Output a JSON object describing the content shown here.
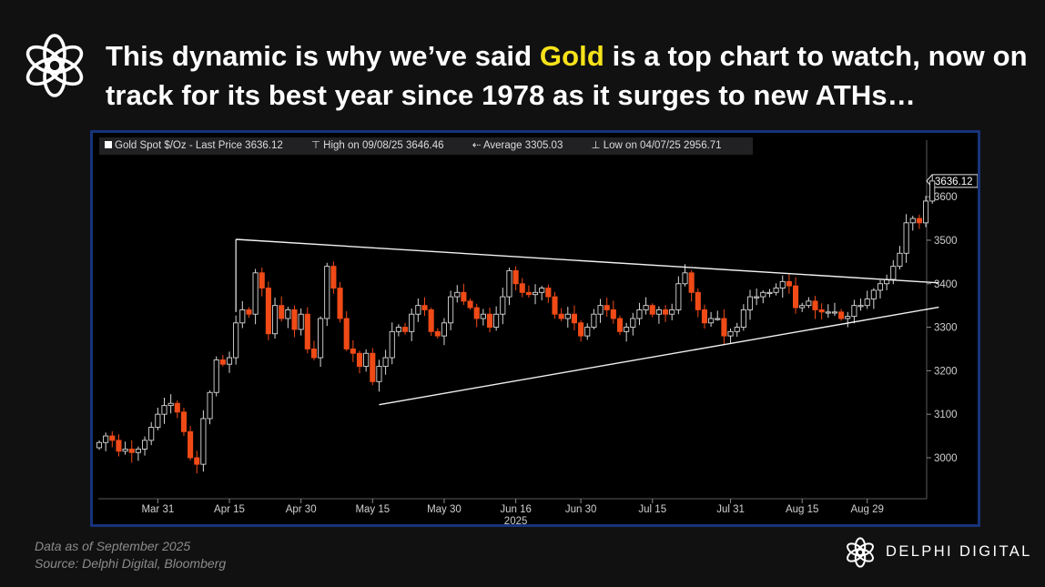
{
  "headline": {
    "part1": "This dynamic is why we’ve said ",
    "highlight": "Gold",
    "part2": " is a top chart to watch, now on track for its best year since 1978 as it surges to new ATHs…"
  },
  "legend": {
    "series": "Gold Spot $/Oz - Last Price 3636.12",
    "high": "High on 09/08/25 3646.46",
    "average": "Average 3305.03",
    "low": "Low on 04/07/25 2956.71"
  },
  "footer": {
    "line1": "Data as of September  2025",
    "line2": "Source:  Delphi Digital, Bloomberg"
  },
  "brand": {
    "name": "DELPHI DIGITAL",
    "logo_icon": "knot-icon"
  },
  "colors": {
    "up": "#000000",
    "up_outline": "#d8d8d8",
    "down": "#f04a17",
    "accent": "#f7e21a",
    "frame": "#17337a"
  },
  "chart_data": {
    "type": "candlestick",
    "title": "Gold Spot $/Oz",
    "last_price_label": "3636.12",
    "year_label": "2025",
    "ylim": [
      2910,
      3730
    ],
    "yticks": [
      3000,
      3100,
      3200,
      3300,
      3400,
      3500,
      3600
    ],
    "xticks": [
      {
        "label": "Mar 31",
        "index": 9
      },
      {
        "label": "Apr 15",
        "index": 20
      },
      {
        "label": "Apr 30",
        "index": 31
      },
      {
        "label": "May 15",
        "index": 42
      },
      {
        "label": "May 30",
        "index": 53
      },
      {
        "label": "Jun 16",
        "index": 64
      },
      {
        "label": "Jun 30",
        "index": 74
      },
      {
        "label": "Jul 15",
        "index": 85
      },
      {
        "label": "Jul 31",
        "index": 97
      },
      {
        "label": "Aug 15",
        "index": 108
      },
      {
        "label": "Aug 29",
        "index": 118
      }
    ],
    "closes": [
      3035,
      3050,
      3040,
      3015,
      3020,
      3012,
      3020,
      3040,
      3070,
      3100,
      3120,
      3125,
      3105,
      3060,
      3000,
      2985,
      3090,
      3150,
      3225,
      3215,
      3230,
      3310,
      3340,
      3330,
      3425,
      3390,
      3285,
      3350,
      3320,
      3340,
      3295,
      3330,
      3250,
      3230,
      3320,
      3440,
      3390,
      3320,
      3250,
      3240,
      3210,
      3240,
      3175,
      3210,
      3230,
      3290,
      3300,
      3290,
      3330,
      3350,
      3340,
      3290,
      3280,
      3310,
      3370,
      3380,
      3360,
      3345,
      3320,
      3330,
      3300,
      3330,
      3370,
      3430,
      3400,
      3380,
      3375,
      3380,
      3390,
      3370,
      3330,
      3320,
      3330,
      3310,
      3280,
      3300,
      3330,
      3350,
      3340,
      3320,
      3290,
      3300,
      3320,
      3340,
      3350,
      3330,
      3340,
      3330,
      3340,
      3400,
      3425,
      3380,
      3340,
      3310,
      3320,
      3320,
      3280,
      3290,
      3300,
      3340,
      3370,
      3370,
      3380,
      3380,
      3390,
      3405,
      3395,
      3345,
      3350,
      3360,
      3340,
      3335,
      3335,
      3335,
      3320,
      3325,
      3350,
      3350,
      3365,
      3385,
      3400,
      3410,
      3440,
      3470,
      3540,
      3550,
      3540,
      3590,
      3636.12
    ],
    "triangle_upper": {
      "start": {
        "index": 21,
        "value": 3502
      },
      "end": {
        "index": 129,
        "value": 3402
      }
    },
    "triangle_lower": {
      "start": {
        "index": 43,
        "value": 3122
      },
      "end": {
        "index": 129,
        "value": 3346
      }
    }
  }
}
